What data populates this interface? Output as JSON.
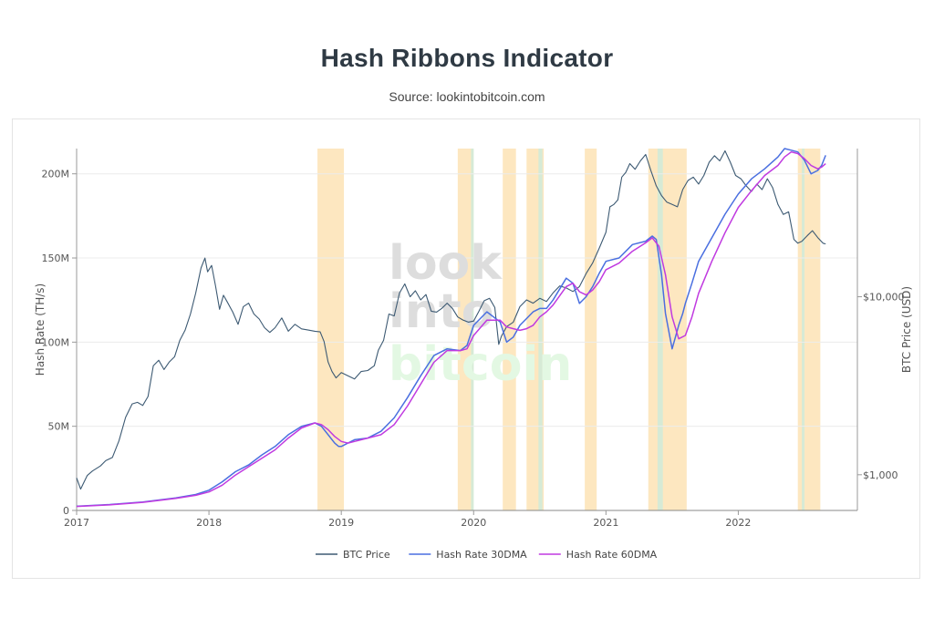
{
  "title": "Hash Ribbons Indicator",
  "source": "Source: lookintobitcoin.com",
  "watermark": {
    "line1": "look",
    "line2": "into",
    "line3": "bitcoin"
  },
  "colors": {
    "btc_price": "#3d5a73",
    "hash_30dma": "#4a6fe0",
    "hash_60dma": "#c03ae0",
    "capitulation_band": "#fde7c0",
    "buy_band": "#d6ead6",
    "grid": "#ececec"
  },
  "chart_data": {
    "type": "line",
    "title": "Hash Ribbons Indicator",
    "xlabel": "",
    "ylabel": "Hash Rate (TH/s)",
    "y2label": "BTC Price (USD)",
    "x_range": [
      2017.0,
      2022.9
    ],
    "ylim": [
      0,
      215000000
    ],
    "y2_scale": "log",
    "y2lim": [
      630,
      68000
    ],
    "x_ticks": [
      {
        "value": 2017,
        "label": "2017"
      },
      {
        "value": 2018,
        "label": "2018"
      },
      {
        "value": 2019,
        "label": "2019"
      },
      {
        "value": 2020,
        "label": "2020"
      },
      {
        "value": 2021,
        "label": "2021"
      },
      {
        "value": 2022,
        "label": "2022"
      }
    ],
    "y_ticks": [
      {
        "value": 0,
        "label": "0"
      },
      {
        "value": 50000000,
        "label": "50M"
      },
      {
        "value": 100000000,
        "label": "100M"
      },
      {
        "value": 150000000,
        "label": "150M"
      },
      {
        "value": 200000000,
        "label": "200M"
      }
    ],
    "y2_ticks": [
      {
        "value": 1000,
        "label": "$1,000"
      },
      {
        "value": 10000,
        "label": "$10,000"
      }
    ],
    "capitulation_bands": [
      [
        2018.82,
        2019.02
      ],
      [
        2019.88,
        2019.99
      ],
      [
        2020.22,
        2020.32
      ],
      [
        2020.4,
        2020.53
      ],
      [
        2020.84,
        2020.93
      ],
      [
        2021.32,
        2021.61
      ],
      [
        2022.45,
        2022.62
      ]
    ],
    "buy_bands": [
      [
        2019.98,
        2019.99
      ],
      [
        2020.49,
        2020.52
      ],
      [
        2021.39,
        2021.43
      ],
      [
        2022.48,
        2022.5
      ]
    ],
    "series": [
      {
        "name": "BTC Price",
        "axis": "y2",
        "x": [
          2017.0,
          2017.03,
          2017.08,
          2017.12,
          2017.18,
          2017.22,
          2017.27,
          2017.32,
          2017.37,
          2017.42,
          2017.46,
          2017.5,
          2017.54,
          2017.58,
          2017.62,
          2017.66,
          2017.7,
          2017.74,
          2017.78,
          2017.82,
          2017.86,
          2017.9,
          2017.94,
          2017.97,
          2017.99,
          2018.02,
          2018.05,
          2018.08,
          2018.11,
          2018.14,
          2018.18,
          2018.22,
          2018.26,
          2018.3,
          2018.34,
          2018.38,
          2018.42,
          2018.46,
          2018.5,
          2018.55,
          2018.6,
          2018.65,
          2018.7,
          2018.75,
          2018.8,
          2018.84,
          2018.87,
          2018.9,
          2018.93,
          2018.96,
          2019.0,
          2019.05,
          2019.1,
          2019.15,
          2019.2,
          2019.25,
          2019.28,
          2019.32,
          2019.36,
          2019.4,
          2019.44,
          2019.48,
          2019.52,
          2019.56,
          2019.6,
          2019.64,
          2019.68,
          2019.72,
          2019.76,
          2019.8,
          2019.84,
          2019.88,
          2019.92,
          2019.96,
          2020.0,
          2020.04,
          2020.08,
          2020.12,
          2020.16,
          2020.19,
          2020.21,
          2020.25,
          2020.3,
          2020.35,
          2020.4,
          2020.45,
          2020.5,
          2020.55,
          2020.6,
          2020.65,
          2020.7,
          2020.75,
          2020.8,
          2020.85,
          2020.9,
          2020.95,
          2021.0,
          2021.03,
          2021.06,
          2021.09,
          2021.12,
          2021.15,
          2021.18,
          2021.22,
          2021.26,
          2021.3,
          2021.34,
          2021.38,
          2021.42,
          2021.46,
          2021.5,
          2021.54,
          2021.58,
          2021.62,
          2021.66,
          2021.7,
          2021.74,
          2021.78,
          2021.82,
          2021.86,
          2021.9,
          2021.94,
          2021.98,
          2022.02,
          2022.06,
          2022.1,
          2022.14,
          2022.18,
          2022.22,
          2022.26,
          2022.3,
          2022.34,
          2022.38,
          2022.42,
          2022.45,
          2022.48,
          2022.52,
          2022.56,
          2022.6,
          2022.64,
          2022.66
        ],
        "values": [
          960,
          830,
          990,
          1050,
          1120,
          1200,
          1250,
          1550,
          2100,
          2500,
          2550,
          2450,
          2750,
          4100,
          4400,
          3900,
          4300,
          4600,
          5700,
          6500,
          8000,
          10500,
          14500,
          16500,
          13800,
          15000,
          11500,
          8500,
          10200,
          9300,
          8200,
          7000,
          8800,
          9200,
          8000,
          7500,
          6700,
          6300,
          6700,
          7600,
          6400,
          7000,
          6600,
          6500,
          6400,
          6350,
          5600,
          4300,
          3800,
          3500,
          3750,
          3600,
          3450,
          3800,
          3850,
          4100,
          5000,
          5700,
          8000,
          7800,
          10500,
          11800,
          10000,
          10800,
          9600,
          10300,
          8300,
          8200,
          8600,
          9200,
          8600,
          7700,
          7400,
          7200,
          7300,
          8300,
          9500,
          9800,
          8700,
          5400,
          6000,
          6800,
          7200,
          8800,
          9600,
          9200,
          9800,
          9400,
          10500,
          11500,
          11200,
          10700,
          11400,
          13500,
          15500,
          18800,
          23000,
          32000,
          33000,
          35000,
          47000,
          50000,
          56000,
          52000,
          58000,
          63000,
          51000,
          42000,
          37000,
          34000,
          33000,
          32000,
          40000,
          45000,
          47000,
          43000,
          48000,
          57000,
          62000,
          58000,
          66000,
          57000,
          48000,
          46000,
          42000,
          39000,
          43000,
          40000,
          46000,
          41000,
          33000,
          29000,
          30000,
          21000,
          20000,
          20500,
          22000,
          23500,
          21500,
          20000,
          19800
        ]
      },
      {
        "name": "Hash Rate 30DMA",
        "axis": "y",
        "x": [
          2017.0,
          2017.25,
          2017.5,
          2017.75,
          2017.9,
          2018.0,
          2018.1,
          2018.2,
          2018.3,
          2018.4,
          2018.5,
          2018.6,
          2018.7,
          2018.8,
          2018.85,
          2018.9,
          2018.95,
          2018.98,
          2019.0,
          2019.1,
          2019.2,
          2019.3,
          2019.4,
          2019.5,
          2019.6,
          2019.7,
          2019.8,
          2019.9,
          2019.95,
          2020.0,
          2020.1,
          2020.2,
          2020.25,
          2020.3,
          2020.35,
          2020.4,
          2020.45,
          2020.5,
          2020.55,
          2020.6,
          2020.7,
          2020.75,
          2020.8,
          2020.85,
          2020.9,
          2020.95,
          2021.0,
          2021.1,
          2021.2,
          2021.3,
          2021.35,
          2021.38,
          2021.42,
          2021.45,
          2021.5,
          2021.55,
          2021.58,
          2021.6,
          2021.65,
          2021.7,
          2021.8,
          2021.9,
          2022.0,
          2022.1,
          2022.2,
          2022.3,
          2022.35,
          2022.4,
          2022.45,
          2022.5,
          2022.55,
          2022.6,
          2022.63,
          2022.66
        ],
        "values": [
          2500000,
          3500000,
          5000000,
          7500000,
          9500000,
          12000000,
          17000000,
          23000000,
          27000000,
          33000000,
          38000000,
          45000000,
          50000000,
          52000000,
          50000000,
          45000000,
          40000000,
          38000000,
          38000000,
          42000000,
          43000000,
          47000000,
          55000000,
          67000000,
          80000000,
          92000000,
          96000000,
          95000000,
          98000000,
          110000000,
          118000000,
          112000000,
          100000000,
          103000000,
          110000000,
          114000000,
          118000000,
          120000000,
          120000000,
          125000000,
          138000000,
          135000000,
          123000000,
          127000000,
          133000000,
          141000000,
          148000000,
          150000000,
          158000000,
          160000000,
          163000000,
          161000000,
          140000000,
          117000000,
          96000000,
          110000000,
          117000000,
          123000000,
          135000000,
          148000000,
          162000000,
          176000000,
          188000000,
          197000000,
          203000000,
          210000000,
          215000000,
          214000000,
          213000000,
          208000000,
          200000000,
          202000000,
          205000000,
          211000000
        ]
      },
      {
        "name": "Hash Rate 60DMA",
        "axis": "y",
        "x": [
          2017.0,
          2017.25,
          2017.5,
          2017.75,
          2017.9,
          2018.0,
          2018.1,
          2018.2,
          2018.3,
          2018.4,
          2018.5,
          2018.6,
          2018.7,
          2018.8,
          2018.85,
          2018.9,
          2018.95,
          2019.0,
          2019.05,
          2019.1,
          2019.2,
          2019.3,
          2019.4,
          2019.5,
          2019.6,
          2019.7,
          2019.8,
          2019.9,
          2019.95,
          2020.0,
          2020.1,
          2020.2,
          2020.25,
          2020.3,
          2020.35,
          2020.4,
          2020.45,
          2020.5,
          2020.55,
          2020.6,
          2020.7,
          2020.75,
          2020.8,
          2020.85,
          2020.9,
          2020.95,
          2021.0,
          2021.1,
          2021.2,
          2021.3,
          2021.35,
          2021.4,
          2021.45,
          2021.5,
          2021.55,
          2021.6,
          2021.65,
          2021.7,
          2021.8,
          2021.9,
          2022.0,
          2022.1,
          2022.2,
          2022.3,
          2022.35,
          2022.4,
          2022.45,
          2022.5,
          2022.55,
          2022.6,
          2022.63,
          2022.66
        ],
        "values": [
          2400000,
          3300000,
          4800000,
          7200000,
          9000000,
          11000000,
          15000000,
          21000000,
          26000000,
          31000000,
          36000000,
          43000000,
          49000000,
          52000000,
          51000000,
          48000000,
          44000000,
          41000000,
          40000000,
          41000000,
          43000000,
          45000000,
          51000000,
          62000000,
          75000000,
          88000000,
          95000000,
          95000000,
          96000000,
          104000000,
          113000000,
          113000000,
          109000000,
          108000000,
          107000000,
          108000000,
          110000000,
          115000000,
          118000000,
          122000000,
          133000000,
          135000000,
          130000000,
          128000000,
          131000000,
          136000000,
          143000000,
          147000000,
          154000000,
          159000000,
          162000000,
          157000000,
          140000000,
          115000000,
          102000000,
          104000000,
          115000000,
          129000000,
          148000000,
          165000000,
          180000000,
          190000000,
          199000000,
          205000000,
          210000000,
          213000000,
          212000000,
          209000000,
          205000000,
          203000000,
          204000000,
          206000000
        ]
      }
    ]
  }
}
